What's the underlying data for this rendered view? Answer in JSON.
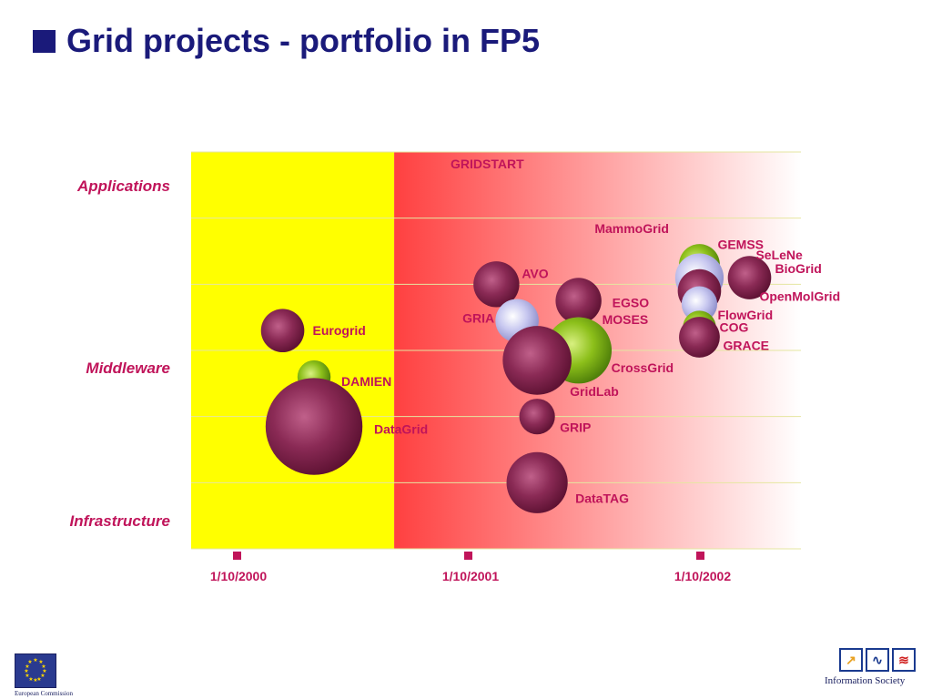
{
  "title": "Grid projects - portfolio in FP5",
  "footer": {
    "left_caption": "European Commission",
    "right_caption": "Information Society"
  },
  "colors": {
    "title": "#1a1a7a",
    "label": "#c0145a",
    "phase1_bg": "#ffff00",
    "phase2_bg_start": "#ff4040",
    "bubble_maroon": "#8a2a55",
    "bubble_green": "#8cbf1a",
    "bubble_lavender": "#c8c8f0"
  },
  "chart_data": {
    "type": "bubble",
    "title": "",
    "y_categories": [
      "Applications",
      "Middleware",
      "Infrastructure"
    ],
    "x_ticks": [
      "1/10/2000",
      "1/10/2001",
      "1/10/2002"
    ],
    "xlim": [
      "2000-07-01",
      "2002-12-31"
    ],
    "phases": [
      {
        "from": "2000-07-01",
        "to": "2001-05-01",
        "fill": "yellow"
      },
      {
        "from": "2001-05-01",
        "to": "2002-12-31",
        "fill": "red-to-white gradient",
        "label": "GRIDSTART"
      }
    ],
    "projects": [
      {
        "name": "GRIDSTART",
        "start": "2001-05-01",
        "layer": 5.8,
        "size": 0,
        "color": "none"
      },
      {
        "name": "MammoGrid",
        "start": "2002-08-01",
        "layer": 4.4,
        "size": 0,
        "color": "none"
      },
      {
        "name": "GEMSS",
        "start": "2002-08-01",
        "layer": 4.3,
        "size": 1.6,
        "color": "green"
      },
      {
        "name": "SeLeNe",
        "start": "2002-08-01",
        "layer": 4.1,
        "size": 1.9,
        "color": "lavender"
      },
      {
        "name": "BioGrid",
        "start": "2002-10-15",
        "layer": 4.1,
        "size": 1.7,
        "color": "maroon"
      },
      {
        "name": "OpenMolGrid",
        "start": "2002-08-01",
        "layer": 3.9,
        "size": 1.7,
        "color": "maroon"
      },
      {
        "name": "FlowGrid",
        "start": "2002-08-01",
        "layer": 3.7,
        "size": 1.4,
        "color": "lavender"
      },
      {
        "name": "COG",
        "start": "2002-08-01",
        "layer": 3.35,
        "size": 1.3,
        "color": "green"
      },
      {
        "name": "GRACE",
        "start": "2002-08-01",
        "layer": 3.2,
        "size": 1.6,
        "color": "maroon"
      },
      {
        "name": "AVO",
        "start": "2001-10-01",
        "layer": 4.0,
        "size": 1.8,
        "color": "maroon"
      },
      {
        "name": "EGSO",
        "start": "2002-02-01",
        "layer": 3.75,
        "size": 1.8,
        "color": "maroon"
      },
      {
        "name": "GRIA",
        "start": "2001-11-01",
        "layer": 3.45,
        "size": 1.7,
        "color": "lavender"
      },
      {
        "name": "MOSES",
        "start": "2002-02-01",
        "layer": 3.25,
        "size": 1.3,
        "color": "lavender"
      },
      {
        "name": "CrossGrid",
        "start": "2002-02-01",
        "layer": 3.0,
        "size": 2.6,
        "color": "green"
      },
      {
        "name": "GridLab",
        "start": "2001-12-01",
        "layer": 2.85,
        "size": 2.7,
        "color": "maroon"
      },
      {
        "name": "GRIP",
        "start": "2001-12-01",
        "layer": 2.0,
        "size": 1.4,
        "color": "maroon"
      },
      {
        "name": "DataTAG",
        "start": "2001-12-01",
        "layer": 1.0,
        "size": 2.4,
        "color": "maroon"
      },
      {
        "name": "Eurogrid",
        "start": "2000-11-15",
        "layer": 3.3,
        "size": 1.7,
        "color": "maroon"
      },
      {
        "name": "DAMIEN",
        "start": "2001-01-01",
        "layer": 2.6,
        "size": 1.3,
        "color": "green"
      },
      {
        "name": "DataGrid",
        "start": "2001-01-01",
        "layer": 1.85,
        "size": 3.8,
        "color": "maroon"
      }
    ]
  }
}
